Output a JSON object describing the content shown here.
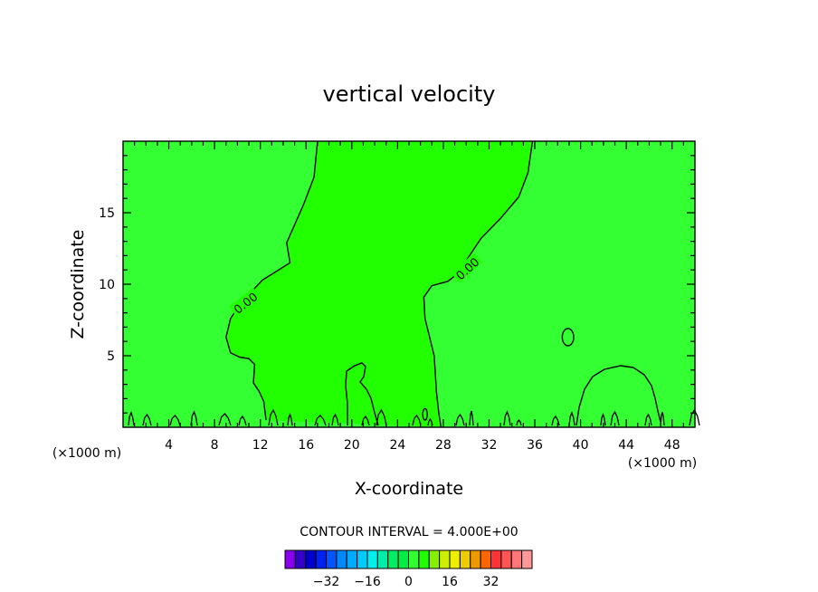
{
  "chart_data": {
    "type": "contour",
    "title": "vertical velocity",
    "xlabel": "X-coordinate",
    "ylabel": "Z-coordinate",
    "x_unit_label": "(×1000 m)",
    "xlim": [
      0,
      50
    ],
    "ylim": [
      0,
      20
    ],
    "x_ticks": [
      4,
      8,
      12,
      16,
      20,
      24,
      28,
      32,
      36,
      40,
      44,
      48
    ],
    "y_ticks": [
      5,
      10,
      15
    ],
    "contour_interval_text": "CONTOUR INTERVAL = 4.000E+00",
    "contour_interval": 4.0,
    "contour_labels": [
      {
        "text": "0.00",
        "x": 10.7,
        "y": 8.7
      },
      {
        "text": "0.00",
        "x": 30.1,
        "y": 11.1
      }
    ],
    "zero_contour_west": [
      [
        17.0,
        20.0
      ],
      [
        16.7,
        17.5
      ],
      [
        15.8,
        15.6
      ],
      [
        14.3,
        12.9
      ],
      [
        14.6,
        11.5
      ],
      [
        12.2,
        10.3
      ],
      [
        10.3,
        8.7
      ],
      [
        9.4,
        7.6
      ],
      [
        9.0,
        6.3
      ],
      [
        9.4,
        5.2
      ],
      [
        10.2,
        4.9
      ],
      [
        11.0,
        4.8
      ],
      [
        11.5,
        4.4
      ],
      [
        11.4,
        3.1
      ],
      [
        11.9,
        2.5
      ],
      [
        12.3,
        1.8
      ],
      [
        12.5,
        0.5
      ]
    ],
    "zero_contour_east": [
      [
        35.8,
        20.0
      ],
      [
        35.4,
        17.8
      ],
      [
        34.6,
        16.1
      ],
      [
        33.0,
        14.6
      ],
      [
        31.3,
        13.2
      ],
      [
        29.2,
        10.7
      ],
      [
        28.4,
        10.2
      ],
      [
        27.0,
        9.9
      ],
      [
        26.3,
        9.1
      ],
      [
        26.4,
        7.6
      ],
      [
        26.8,
        6.3
      ],
      [
        27.2,
        5.0
      ],
      [
        27.3,
        3.8
      ],
      [
        27.4,
        2.5
      ],
      [
        27.6,
        1.0
      ],
      [
        27.8,
        0.0
      ]
    ],
    "closed_contours": [
      {
        "x": 38.9,
        "y": 6.3,
        "rx": 0.5,
        "ry": 0.6
      },
      {
        "x": 26.4,
        "y": 0.9,
        "rx": 0.2,
        "ry": 0.4
      }
    ],
    "regions": [
      {
        "value": 0,
        "color": "#22ff00"
      },
      {
        "value": -4,
        "color": "#33ff33"
      }
    ],
    "colorbar": {
      "colors": [
        "#8800ee",
        "#3300cc",
        "#0000cc",
        "#0022ee",
        "#0055ff",
        "#0088ff",
        "#00aaff",
        "#00ccff",
        "#00eeee",
        "#00eeaa",
        "#00ee66",
        "#00ee44",
        "#33ff33",
        "#22ff00",
        "#88ee00",
        "#ccee00",
        "#eeee00",
        "#eecc00",
        "#ee9900",
        "#ff6600",
        "#ff3333",
        "#ff5555",
        "#ff7777",
        "#ff9999"
      ],
      "tick_labels": [
        "-32",
        "-16",
        "0",
        "16",
        "32"
      ],
      "tick_values": [
        -32,
        -16,
        0,
        16,
        32
      ]
    }
  }
}
